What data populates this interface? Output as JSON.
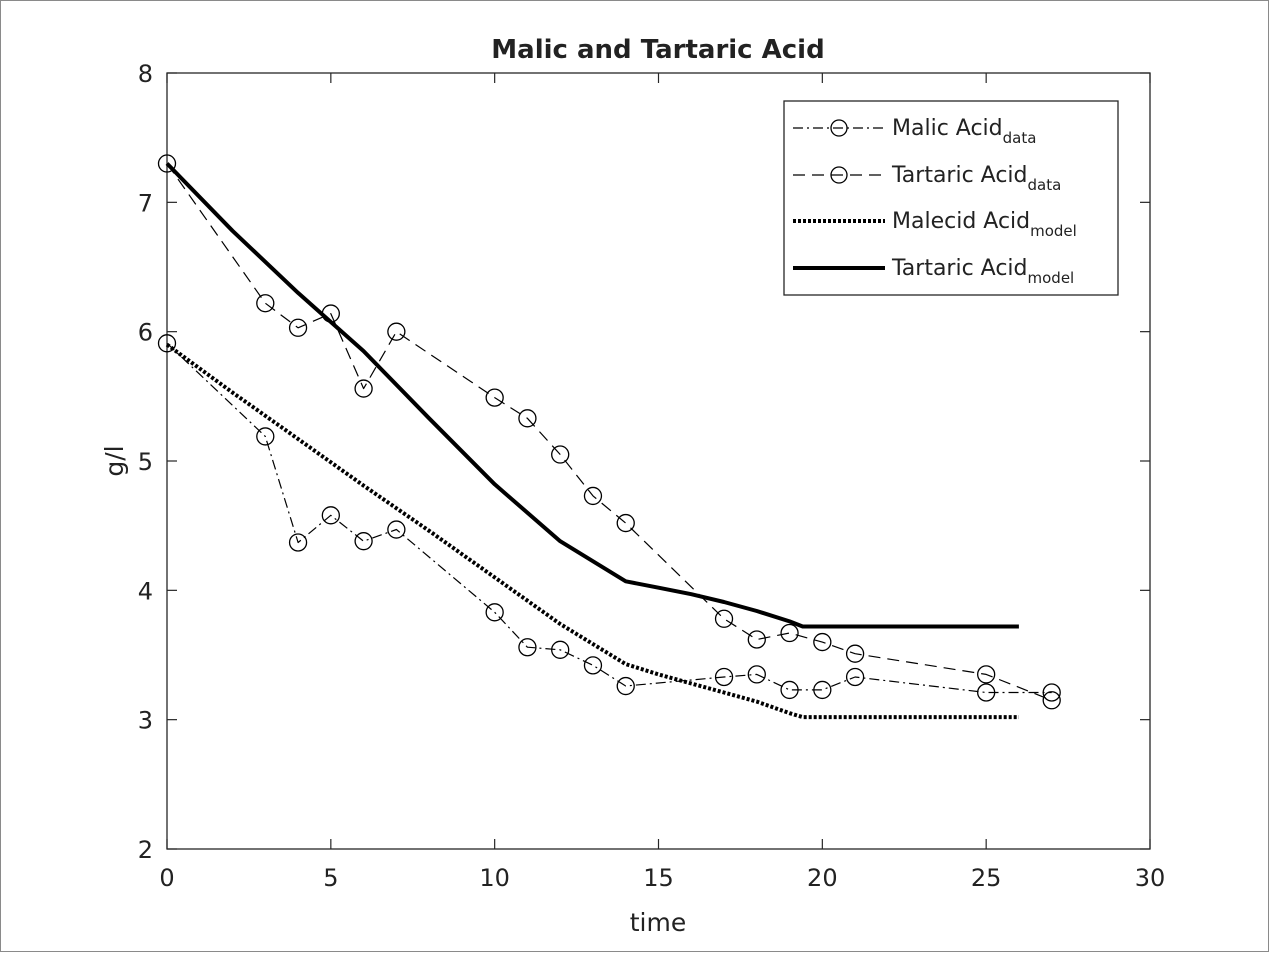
{
  "chart_data": {
    "type": "line",
    "title": "Malic and Tartaric Acid",
    "xlabel": "time",
    "ylabel": "g/l",
    "xlim": [
      0,
      30
    ],
    "ylim": [
      2,
      8
    ],
    "xticks": [
      0,
      5,
      10,
      15,
      20,
      25,
      30
    ],
    "yticks": [
      2,
      3,
      4,
      5,
      6,
      7,
      8
    ],
    "grid": false,
    "legend_position": "top-right",
    "series": [
      {
        "name": "Malic Acid",
        "name_subscript": "data",
        "style": "dash-dot",
        "marker": "circle",
        "color": "#000000",
        "x": [
          0,
          3,
          4,
          5,
          6,
          7,
          10,
          11,
          12,
          13,
          14,
          17,
          18,
          19,
          20,
          21,
          25,
          27
        ],
        "y": [
          5.91,
          5.19,
          4.37,
          4.58,
          4.38,
          4.47,
          3.83,
          3.56,
          3.54,
          3.42,
          3.26,
          3.33,
          3.35,
          3.23,
          3.23,
          3.33,
          3.21,
          3.21
        ]
      },
      {
        "name": "Tartaric Acid",
        "name_subscript": "data",
        "style": "dashed",
        "marker": "circle",
        "color": "#000000",
        "x": [
          0,
          3,
          4,
          5,
          6,
          7,
          10,
          11,
          12,
          13,
          14,
          17,
          18,
          19,
          20,
          21,
          25,
          27
        ],
        "y": [
          7.3,
          6.22,
          6.03,
          6.14,
          5.56,
          6.0,
          5.49,
          5.33,
          5.05,
          4.73,
          4.52,
          3.78,
          3.62,
          3.67,
          3.6,
          3.51,
          3.35,
          3.15
        ]
      },
      {
        "name": "Malecid Acid",
        "name_subscript": "model",
        "style": "dotted",
        "marker": "none",
        "color": "#000000",
        "x": [
          0,
          2,
          4,
          6,
          8,
          10,
          12,
          14,
          15,
          16,
          17,
          18,
          19,
          19.4,
          20,
          22,
          24,
          26
        ],
        "y": [
          5.9,
          5.53,
          5.17,
          4.81,
          4.46,
          4.1,
          3.74,
          3.43,
          3.35,
          3.28,
          3.21,
          3.14,
          3.05,
          3.02,
          3.02,
          3.02,
          3.02,
          3.02
        ]
      },
      {
        "name": "Tartaric Acid",
        "name_subscript": "model",
        "style": "solid",
        "marker": "none",
        "color": "#000000",
        "x": [
          0,
          2,
          4,
          6,
          8,
          10,
          12,
          14,
          15,
          16,
          17,
          18,
          19,
          19.4,
          20,
          22,
          24,
          26
        ],
        "y": [
          7.3,
          6.78,
          6.3,
          5.85,
          5.33,
          4.82,
          4.38,
          4.07,
          4.02,
          3.97,
          3.91,
          3.84,
          3.76,
          3.72,
          3.72,
          3.72,
          3.72,
          3.72
        ]
      }
    ]
  }
}
